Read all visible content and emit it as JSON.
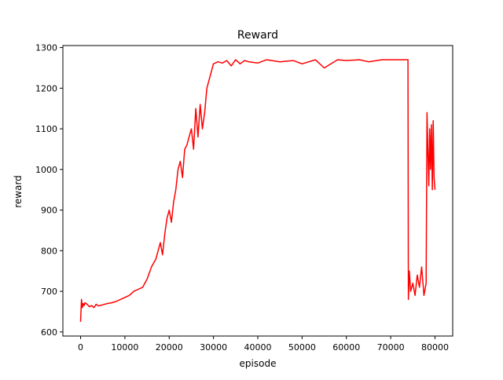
{
  "chart_data": {
    "type": "line",
    "title": "Reward",
    "xlabel": "episode",
    "ylabel": "reward",
    "xlim": [
      -4000,
      84000
    ],
    "ylim": [
      590,
      1305
    ],
    "xticks": [
      0,
      10000,
      20000,
      30000,
      40000,
      50000,
      60000,
      70000,
      80000
    ],
    "xtick_labels": [
      "0",
      "10000",
      "20000",
      "30000",
      "40000",
      "50000",
      "60000",
      "70000",
      "80000"
    ],
    "yticks": [
      600,
      700,
      800,
      900,
      1000,
      1100,
      1200,
      1300
    ],
    "ytick_labels": [
      "600",
      "700",
      "800",
      "900",
      "1000",
      "1100",
      "1200",
      "1300"
    ],
    "grid": false,
    "series": [
      {
        "color": "#ff0000",
        "x": [
          0,
          200,
          400,
          600,
          800,
          1000,
          1500,
          2000,
          2500,
          3000,
          3500,
          4000,
          5000,
          6000,
          7000,
          8000,
          9000,
          10000,
          11000,
          12000,
          13000,
          14000,
          15000,
          16000,
          17000,
          17500,
          18000,
          18500,
          19000,
          19500,
          20000,
          20500,
          21000,
          21500,
          22000,
          22500,
          23000,
          23500,
          24000,
          24500,
          25000,
          25500,
          26000,
          26500,
          27000,
          27500,
          28000,
          28500,
          29000,
          29500,
          30000,
          31000,
          32000,
          33000,
          34000,
          35000,
          36000,
          37000,
          38000,
          40000,
          42000,
          45000,
          48000,
          50000,
          53000,
          55000,
          58000,
          60000,
          63000,
          65000,
          68000,
          70000,
          72000,
          73500,
          73900,
          74000,
          74200,
          74500,
          75000,
          75500,
          76000,
          76500,
          77000,
          77500,
          78000,
          78200,
          78400,
          78600,
          78800,
          79000,
          79200,
          79400,
          79600,
          79800,
          80000
        ],
        "y": [
          625,
          680,
          660,
          670,
          665,
          672,
          668,
          662,
          665,
          660,
          668,
          664,
          667,
          670,
          672,
          675,
          680,
          685,
          690,
          700,
          705,
          710,
          730,
          760,
          780,
          800,
          820,
          790,
          840,
          880,
          900,
          870,
          920,
          950,
          1000,
          1020,
          980,
          1050,
          1060,
          1080,
          1100,
          1050,
          1150,
          1080,
          1160,
          1100,
          1140,
          1200,
          1220,
          1240,
          1260,
          1265,
          1262,
          1268,
          1255,
          1270,
          1260,
          1268,
          1265,
          1262,
          1270,
          1265,
          1268,
          1260,
          1270,
          1250,
          1270,
          1268,
          1270,
          1265,
          1270,
          1270,
          1270,
          1270,
          1270,
          680,
          750,
          700,
          720,
          690,
          740,
          710,
          760,
          690,
          720,
          1140,
          1050,
          960,
          1100,
          1000,
          1110,
          950,
          1120,
          980,
          950
        ]
      }
    ]
  }
}
